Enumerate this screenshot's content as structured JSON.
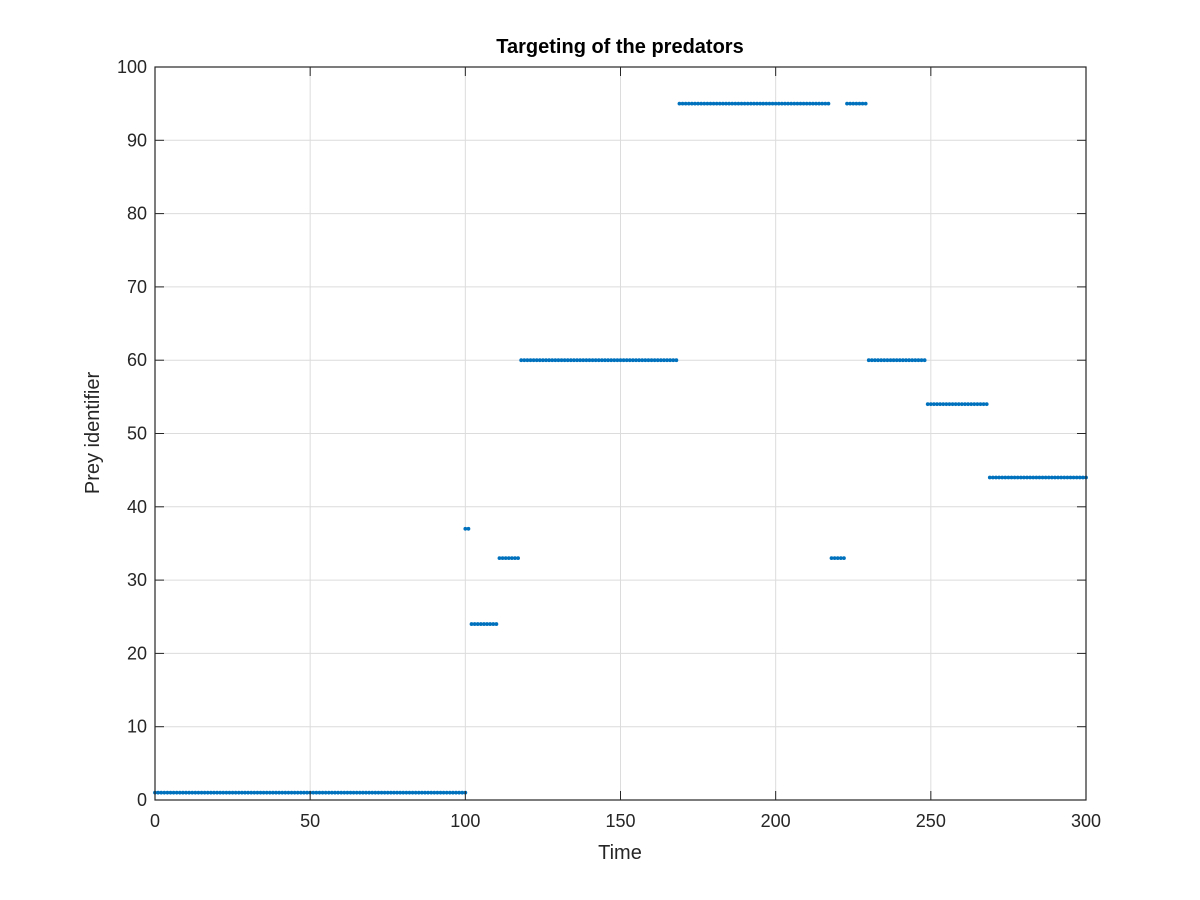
{
  "chart_data": {
    "type": "scatter",
    "title": "Targeting of the predators",
    "xlabel": "Time",
    "ylabel": "Prey identifier",
    "xlim": [
      0,
      300
    ],
    "ylim": [
      0,
      100
    ],
    "xticks": [
      0,
      50,
      100,
      150,
      200,
      250,
      300
    ],
    "yticks": [
      0,
      10,
      20,
      30,
      40,
      50,
      60,
      70,
      80,
      90,
      100
    ],
    "grid": true,
    "sample_interval": 1,
    "color": "#0072bd",
    "segments": [
      {
        "prey": 1,
        "t_start": 0,
        "t_end": 100
      },
      {
        "prey": 37,
        "t_start": 100,
        "t_end": 101
      },
      {
        "prey": 24,
        "t_start": 102,
        "t_end": 110
      },
      {
        "prey": 33,
        "t_start": 111,
        "t_end": 117
      },
      {
        "prey": 60,
        "t_start": 118,
        "t_end": 168
      },
      {
        "prey": 95,
        "t_start": 169,
        "t_end": 217
      },
      {
        "prey": 33,
        "t_start": 218,
        "t_end": 222
      },
      {
        "prey": 95,
        "t_start": 223,
        "t_end": 229
      },
      {
        "prey": 60,
        "t_start": 230,
        "t_end": 248
      },
      {
        "prey": 54,
        "t_start": 249,
        "t_end": 268
      },
      {
        "prey": 44,
        "t_start": 269,
        "t_end": 300
      }
    ]
  }
}
